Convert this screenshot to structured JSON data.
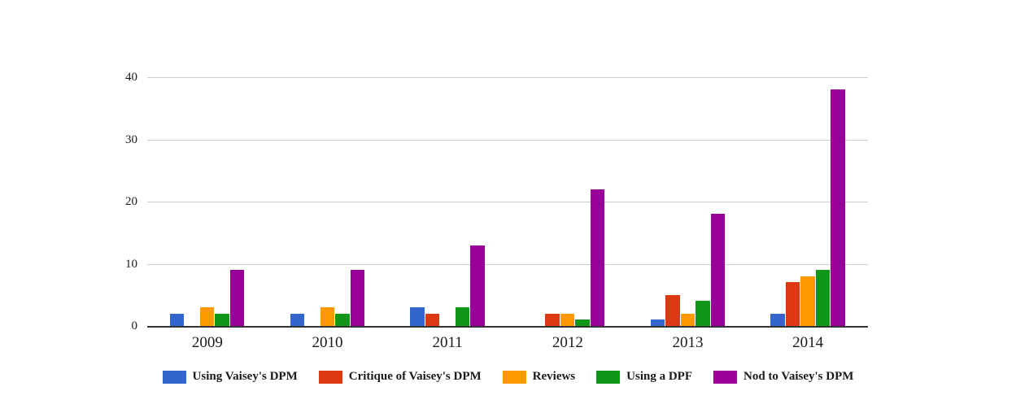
{
  "chart_data": {
    "type": "bar",
    "title": "",
    "xlabel": "",
    "ylabel": "",
    "categories": [
      "2009",
      "2010",
      "2011",
      "2012",
      "2013",
      "2014"
    ],
    "series": [
      {
        "name": "Using Vaisey's DPM",
        "color": "#3366CC",
        "values": [
          2,
          2,
          3,
          0,
          1,
          2
        ]
      },
      {
        "name": "Critique of Vaisey's DPM",
        "color": "#DC3912",
        "values": [
          0,
          0,
          2,
          2,
          5,
          7
        ]
      },
      {
        "name": "Reviews",
        "color": "#FF9900",
        "values": [
          3,
          3,
          0,
          2,
          2,
          8
        ]
      },
      {
        "name": "Using a DPF",
        "color": "#109618",
        "values": [
          2,
          2,
          3,
          1,
          4,
          9
        ]
      },
      {
        "name": "Nod to Vaisey's DPM",
        "color": "#990099",
        "values": [
          9,
          9,
          13,
          22,
          18,
          38
        ]
      }
    ],
    "ylim": [
      0,
      40
    ],
    "yticks": [
      0,
      10,
      20,
      30,
      40
    ],
    "grid": true,
    "legend_position": "bottom",
    "colors": {
      "background": "#ffffff",
      "gridline": "#cccccc",
      "axis_line": "#333333",
      "text": "#1a1a1a"
    }
  }
}
